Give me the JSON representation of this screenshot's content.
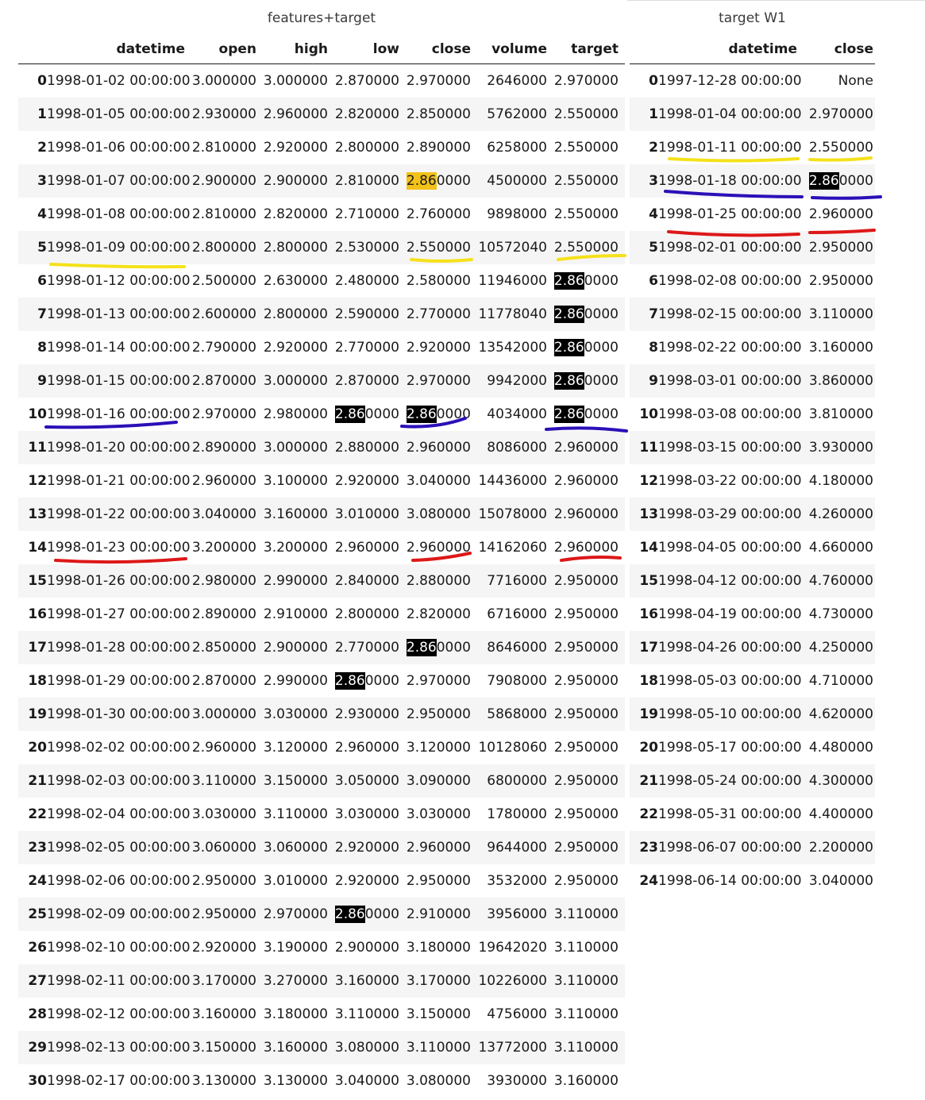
{
  "left_table": {
    "caption": "features+target",
    "columns": [
      "",
      "datetime",
      "open",
      "high",
      "low",
      "close",
      "volume",
      "target"
    ],
    "rows": [
      [
        "0",
        "1998-01-02 00:00:00",
        "3.000000",
        "3.000000",
        "2.870000",
        "2.970000",
        "2646000",
        "2.970000"
      ],
      [
        "1",
        "1998-01-05 00:00:00",
        "2.930000",
        "2.960000",
        "2.820000",
        "2.850000",
        "5762000",
        "2.550000"
      ],
      [
        "2",
        "1998-01-06 00:00:00",
        "2.810000",
        "2.920000",
        "2.800000",
        "2.890000",
        "6258000",
        "2.550000"
      ],
      [
        "3",
        "1998-01-07 00:00:00",
        "2.900000",
        "2.900000",
        "2.810000",
        "2.860000",
        "4500000",
        "2.550000"
      ],
      [
        "4",
        "1998-01-08 00:00:00",
        "2.810000",
        "2.820000",
        "2.710000",
        "2.760000",
        "9898000",
        "2.550000"
      ],
      [
        "5",
        "1998-01-09 00:00:00",
        "2.800000",
        "2.800000",
        "2.530000",
        "2.550000",
        "10572040",
        "2.550000"
      ],
      [
        "6",
        "1998-01-12 00:00:00",
        "2.500000",
        "2.630000",
        "2.480000",
        "2.580000",
        "11946000",
        "2.860000"
      ],
      [
        "7",
        "1998-01-13 00:00:00",
        "2.600000",
        "2.800000",
        "2.590000",
        "2.770000",
        "11778040",
        "2.860000"
      ],
      [
        "8",
        "1998-01-14 00:00:00",
        "2.790000",
        "2.920000",
        "2.770000",
        "2.920000",
        "13542000",
        "2.860000"
      ],
      [
        "9",
        "1998-01-15 00:00:00",
        "2.870000",
        "3.000000",
        "2.870000",
        "2.970000",
        "9942000",
        "2.860000"
      ],
      [
        "10",
        "1998-01-16 00:00:00",
        "2.970000",
        "2.980000",
        "2.860000",
        "2.860000",
        "4034000",
        "2.860000"
      ],
      [
        "11",
        "1998-01-20 00:00:00",
        "2.890000",
        "3.000000",
        "2.880000",
        "2.960000",
        "8086000",
        "2.960000"
      ],
      [
        "12",
        "1998-01-21 00:00:00",
        "2.960000",
        "3.100000",
        "2.920000",
        "3.040000",
        "14436000",
        "2.960000"
      ],
      [
        "13",
        "1998-01-22 00:00:00",
        "3.040000",
        "3.160000",
        "3.010000",
        "3.080000",
        "15078000",
        "2.960000"
      ],
      [
        "14",
        "1998-01-23 00:00:00",
        "3.200000",
        "3.200000",
        "2.960000",
        "2.960000",
        "14162060",
        "2.960000"
      ],
      [
        "15",
        "1998-01-26 00:00:00",
        "2.980000",
        "2.990000",
        "2.840000",
        "2.880000",
        "7716000",
        "2.950000"
      ],
      [
        "16",
        "1998-01-27 00:00:00",
        "2.890000",
        "2.910000",
        "2.800000",
        "2.820000",
        "6716000",
        "2.950000"
      ],
      [
        "17",
        "1998-01-28 00:00:00",
        "2.850000",
        "2.900000",
        "2.770000",
        "2.860000",
        "8646000",
        "2.950000"
      ],
      [
        "18",
        "1998-01-29 00:00:00",
        "2.870000",
        "2.990000",
        "2.860000",
        "2.970000",
        "7908000",
        "2.950000"
      ],
      [
        "19",
        "1998-01-30 00:00:00",
        "3.000000",
        "3.030000",
        "2.930000",
        "2.950000",
        "5868000",
        "2.950000"
      ],
      [
        "20",
        "1998-02-02 00:00:00",
        "2.960000",
        "3.120000",
        "2.960000",
        "3.120000",
        "10128060",
        "2.950000"
      ],
      [
        "21",
        "1998-02-03 00:00:00",
        "3.110000",
        "3.150000",
        "3.050000",
        "3.090000",
        "6800000",
        "2.950000"
      ],
      [
        "22",
        "1998-02-04 00:00:00",
        "3.030000",
        "3.110000",
        "3.030000",
        "3.030000",
        "1780000",
        "2.950000"
      ],
      [
        "23",
        "1998-02-05 00:00:00",
        "3.060000",
        "3.060000",
        "2.920000",
        "2.960000",
        "9644000",
        "2.950000"
      ],
      [
        "24",
        "1998-02-06 00:00:00",
        "2.950000",
        "3.010000",
        "2.920000",
        "2.950000",
        "3532000",
        "2.950000"
      ],
      [
        "25",
        "1998-02-09 00:00:00",
        "2.950000",
        "2.970000",
        "2.860000",
        "2.910000",
        "3956000",
        "3.110000"
      ],
      [
        "26",
        "1998-02-10 00:00:00",
        "2.920000",
        "3.190000",
        "2.900000",
        "3.180000",
        "19642020",
        "3.110000"
      ],
      [
        "27",
        "1998-02-11 00:00:00",
        "3.170000",
        "3.270000",
        "3.160000",
        "3.170000",
        "10226000",
        "3.110000"
      ],
      [
        "28",
        "1998-02-12 00:00:00",
        "3.160000",
        "3.180000",
        "3.110000",
        "3.150000",
        "4756000",
        "3.110000"
      ],
      [
        "29",
        "1998-02-13 00:00:00",
        "3.150000",
        "3.160000",
        "3.080000",
        "3.110000",
        "13772000",
        "3.110000"
      ],
      [
        "30",
        "1998-02-17 00:00:00",
        "3.130000",
        "3.130000",
        "3.040000",
        "3.080000",
        "3930000",
        "3.160000"
      ]
    ]
  },
  "right_table": {
    "caption": "target W1",
    "columns": [
      "",
      "datetime",
      "close"
    ],
    "rows": [
      [
        "0",
        "1997-12-28 00:00:00",
        "None"
      ],
      [
        "1",
        "1998-01-04 00:00:00",
        "2.970000"
      ],
      [
        "2",
        "1998-01-11 00:00:00",
        "2.550000"
      ],
      [
        "3",
        "1998-01-18 00:00:00",
        "2.860000"
      ],
      [
        "4",
        "1998-01-25 00:00:00",
        "2.960000"
      ],
      [
        "5",
        "1998-02-01 00:00:00",
        "2.950000"
      ],
      [
        "6",
        "1998-02-08 00:00:00",
        "2.950000"
      ],
      [
        "7",
        "1998-02-15 00:00:00",
        "3.110000"
      ],
      [
        "8",
        "1998-02-22 00:00:00",
        "3.160000"
      ],
      [
        "9",
        "1998-03-01 00:00:00",
        "3.860000"
      ],
      [
        "10",
        "1998-03-08 00:00:00",
        "3.810000"
      ],
      [
        "11",
        "1998-03-15 00:00:00",
        "3.930000"
      ],
      [
        "12",
        "1998-03-22 00:00:00",
        "4.180000"
      ],
      [
        "13",
        "1998-03-29 00:00:00",
        "4.260000"
      ],
      [
        "14",
        "1998-04-05 00:00:00",
        "4.660000"
      ],
      [
        "15",
        "1998-04-12 00:00:00",
        "4.760000"
      ],
      [
        "16",
        "1998-04-19 00:00:00",
        "4.730000"
      ],
      [
        "17",
        "1998-04-26 00:00:00",
        "4.250000"
      ],
      [
        "18",
        "1998-05-03 00:00:00",
        "4.710000"
      ],
      [
        "19",
        "1998-05-10 00:00:00",
        "4.620000"
      ],
      [
        "20",
        "1998-05-17 00:00:00",
        "4.480000"
      ],
      [
        "21",
        "1998-05-24 00:00:00",
        "4.300000"
      ],
      [
        "22",
        "1998-05-31 00:00:00",
        "4.400000"
      ],
      [
        "23",
        "1998-06-07 00:00:00",
        "2.200000"
      ],
      [
        "24",
        "1998-06-14 00:00:00",
        "3.040000"
      ]
    ]
  },
  "search_highlights": [
    {
      "table": "left",
      "row": 3,
      "col": 5,
      "color": "yellow"
    },
    {
      "table": "left",
      "row": 6,
      "col": 7,
      "color": "black"
    },
    {
      "table": "left",
      "row": 7,
      "col": 7,
      "color": "black"
    },
    {
      "table": "left",
      "row": 8,
      "col": 7,
      "color": "black"
    },
    {
      "table": "left",
      "row": 9,
      "col": 7,
      "color": "black"
    },
    {
      "table": "left",
      "row": 10,
      "col": 4,
      "color": "black"
    },
    {
      "table": "left",
      "row": 10,
      "col": 5,
      "color": "black"
    },
    {
      "table": "left",
      "row": 10,
      "col": 7,
      "color": "black"
    },
    {
      "table": "left",
      "row": 17,
      "col": 5,
      "color": "black"
    },
    {
      "table": "left",
      "row": 18,
      "col": 4,
      "color": "black"
    },
    {
      "table": "left",
      "row": 25,
      "col": 4,
      "color": "black"
    },
    {
      "table": "right",
      "row": 3,
      "col": 2,
      "color": "black"
    }
  ],
  "annotation_colors": {
    "yellow": "#f5e11a",
    "blue": "#2a10b8",
    "red": "#dd1818",
    "search_current": "#f2c21a",
    "search_match": "#000000"
  }
}
